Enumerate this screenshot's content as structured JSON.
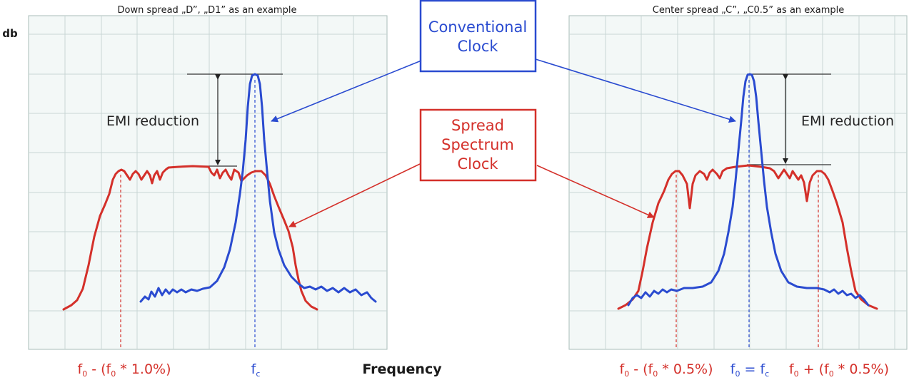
{
  "left_panel": {
    "caption": "Down spread „D”, „D1” as an example",
    "annotation": "EMI reduction",
    "freq_label_left": {
      "main": "f",
      "sub": "0",
      "rest": " - (f",
      "sub2": "0",
      "rest2": " * 1.0%)"
    },
    "freq_label_center": {
      "main": "f",
      "sub": "c"
    }
  },
  "right_panel": {
    "caption": "Center spread „C”, „C0.5” as an example",
    "annotation": "EMI reduction",
    "freq_label_left": {
      "main": "f",
      "sub": "0",
      "rest": " - (f",
      "sub2": "0",
      "rest2": " * 0.5%)"
    },
    "freq_label_center": {
      "main": "f",
      "sub": "0",
      "rest": " = f",
      "sub2": "c"
    },
    "freq_label_right": {
      "main": "f",
      "sub": "0",
      "rest": " + (f",
      "sub2": "0",
      "rest2": " * 0.5%)"
    }
  },
  "y_axis_label": "db",
  "x_axis_label": "Frequency",
  "legend": {
    "conventional": [
      "Conventional",
      "Clock"
    ],
    "spread": [
      "Spread",
      "Spectrum",
      "Clock"
    ]
  },
  "colors": {
    "conventional": "#2a4bd0",
    "spread": "#d4302a",
    "grid": "#c8d6d4",
    "panel_bg": "#f3f8f7"
  }
}
